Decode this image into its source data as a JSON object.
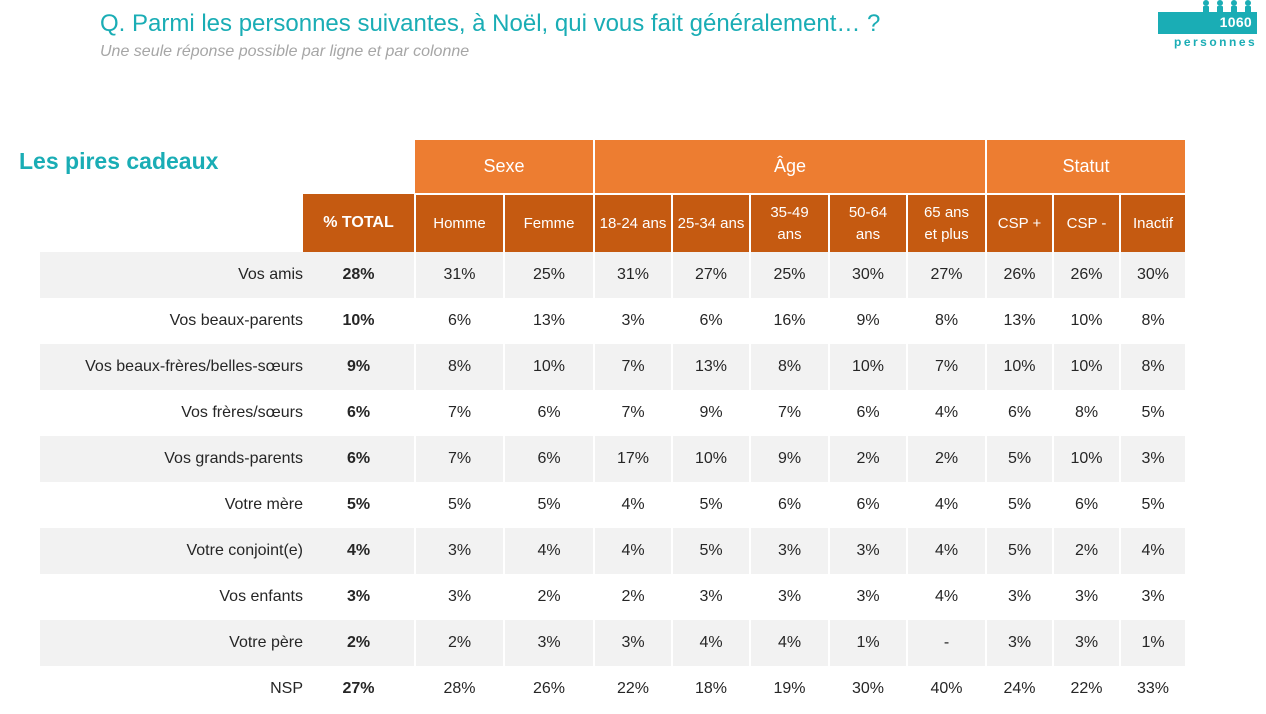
{
  "header": {
    "question": "Q. Parmi les personnes suivantes, à Noël, qui vous fait généralement… ?",
    "instruction": "Une seule réponse possible par ligne et par colonne"
  },
  "badge": {
    "count": "1060",
    "label": "personnes",
    "color": "#1aadb5",
    "icon": "people-icon"
  },
  "section": {
    "title": "Les pires cadeaux"
  },
  "colors": {
    "accent": "#1aadb5",
    "header_group": "#ed7d31",
    "header_sub": "#c55a11",
    "row_shade": "#f2f2f2"
  },
  "table": {
    "groups": [
      {
        "label": "Sexe"
      },
      {
        "label": "Âge"
      },
      {
        "label": "Statut"
      }
    ],
    "columns": [
      "% TOTAL",
      "Homme",
      "Femme",
      "18-24 ans",
      "25-34 ans",
      "35-49 ans",
      "50-64 ans",
      "65 ans et plus",
      "CSP +",
      "CSP -",
      "Inactif"
    ],
    "rows": [
      {
        "label": "Vos amis",
        "total": "28%",
        "values": [
          "31%",
          "25%",
          "31%",
          "27%",
          "25%",
          "30%",
          "27%",
          "26%",
          "26%",
          "30%"
        ]
      },
      {
        "label": "Vos beaux-parents",
        "total": "10%",
        "values": [
          "6%",
          "13%",
          "3%",
          "6%",
          "16%",
          "9%",
          "8%",
          "13%",
          "10%",
          "8%"
        ]
      },
      {
        "label": "Vos beaux-frères/belles-sœurs",
        "total": "9%",
        "values": [
          "8%",
          "10%",
          "7%",
          "13%",
          "8%",
          "10%",
          "7%",
          "10%",
          "10%",
          "8%"
        ]
      },
      {
        "label": "Vos frères/sœurs",
        "total": "6%",
        "values": [
          "7%",
          "6%",
          "7%",
          "9%",
          "7%",
          "6%",
          "4%",
          "6%",
          "8%",
          "5%"
        ]
      },
      {
        "label": "Vos grands-parents",
        "total": "6%",
        "values": [
          "7%",
          "6%",
          "17%",
          "10%",
          "9%",
          "2%",
          "2%",
          "5%",
          "10%",
          "3%"
        ]
      },
      {
        "label": "Votre mère",
        "total": "5%",
        "values": [
          "5%",
          "5%",
          "4%",
          "5%",
          "6%",
          "6%",
          "4%",
          "5%",
          "6%",
          "5%"
        ]
      },
      {
        "label": "Votre conjoint(e)",
        "total": "4%",
        "values": [
          "3%",
          "4%",
          "4%",
          "5%",
          "3%",
          "3%",
          "4%",
          "5%",
          "2%",
          "4%"
        ]
      },
      {
        "label": "Vos enfants",
        "total": "3%",
        "values": [
          "3%",
          "2%",
          "2%",
          "3%",
          "3%",
          "3%",
          "4%",
          "3%",
          "3%",
          "3%"
        ]
      },
      {
        "label": "Votre père",
        "total": "2%",
        "values": [
          "2%",
          "3%",
          "3%",
          "4%",
          "4%",
          "1%",
          "-",
          "3%",
          "3%",
          "1%"
        ]
      },
      {
        "label": "NSP",
        "total": "27%",
        "values": [
          "28%",
          "26%",
          "22%",
          "18%",
          "19%",
          "30%",
          "40%",
          "24%",
          "22%",
          "33%"
        ]
      }
    ]
  }
}
